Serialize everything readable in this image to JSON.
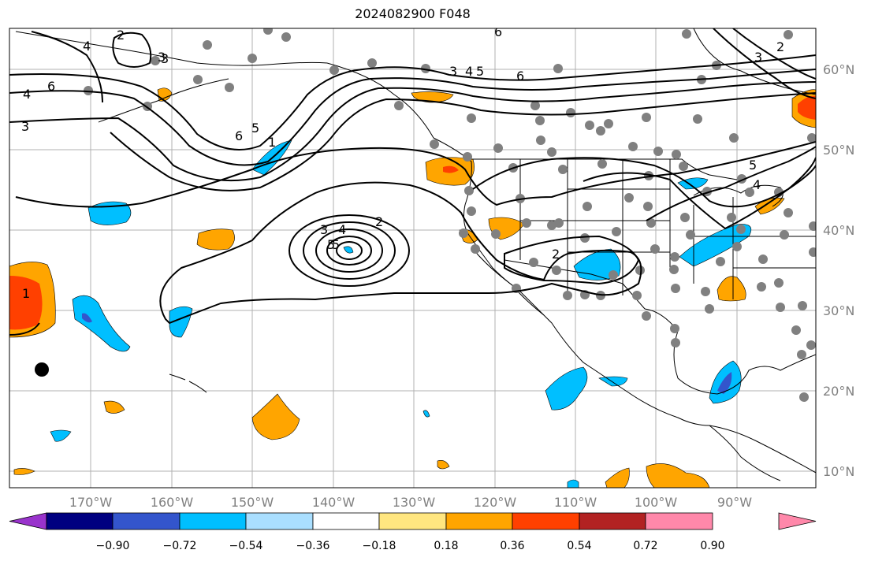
{
  "title": "2024082900 F048",
  "lon_labels": [
    "170°W",
    "160°W",
    "150°W",
    "140°W",
    "130°W",
    "120°W",
    "110°W",
    "100°W",
    "90°W"
  ],
  "lat_labels": [
    "60°N",
    "50°N",
    "40°N",
    "30°N",
    "20°N",
    "10°N"
  ],
  "colorbar": {
    "colors": [
      "#9933cc",
      "#000080",
      "#3355cc",
      "#00bfff",
      "#aadfff",
      "#ffffff",
      "#ffe680",
      "#ffa500",
      "#ff4000",
      "#b22222",
      "#ff88aa"
    ],
    "ticks": [
      "−0.90",
      "−0.72",
      "−0.54",
      "−0.36",
      "−0.18",
      "0.18",
      "0.36",
      "0.54",
      "0.72",
      "0.90"
    ]
  },
  "contour_labels": [
    "2",
    "3",
    "4",
    "5",
    "6",
    "3",
    "4",
    "5",
    "6",
    "6",
    "4",
    "3",
    "4",
    "3",
    "6",
    "5",
    "1",
    "3",
    "4",
    "5",
    "2",
    "2",
    "1",
    "3",
    "2",
    "5"
  ],
  "colors": {
    "positive": "#ffa500",
    "strong_positive": "#ff4000",
    "negative": "#00bfff",
    "strong_negative": "#3355cc",
    "station": "#808080",
    "grid": "#b0b0b0"
  }
}
